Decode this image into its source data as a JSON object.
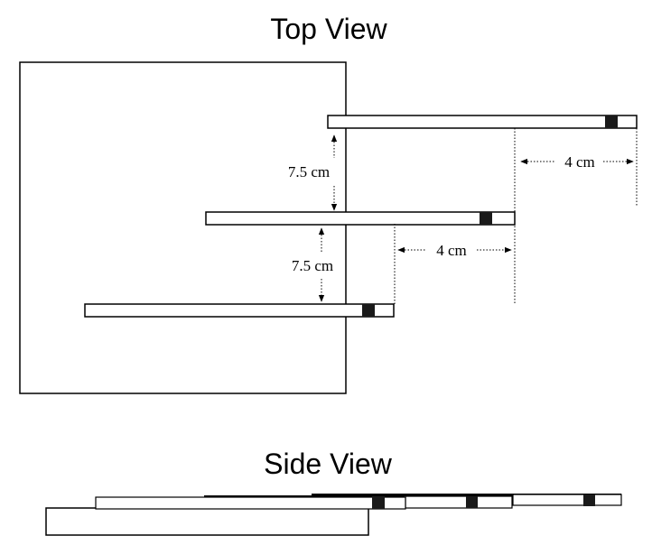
{
  "top_view": {
    "title": "Top View",
    "vertical_spacing_labels": [
      "7.5 cm",
      "7.5 cm"
    ],
    "horizontal_offset_labels": [
      "4 cm",
      "4 cm"
    ]
  },
  "side_view": {
    "title": "Side View"
  }
}
